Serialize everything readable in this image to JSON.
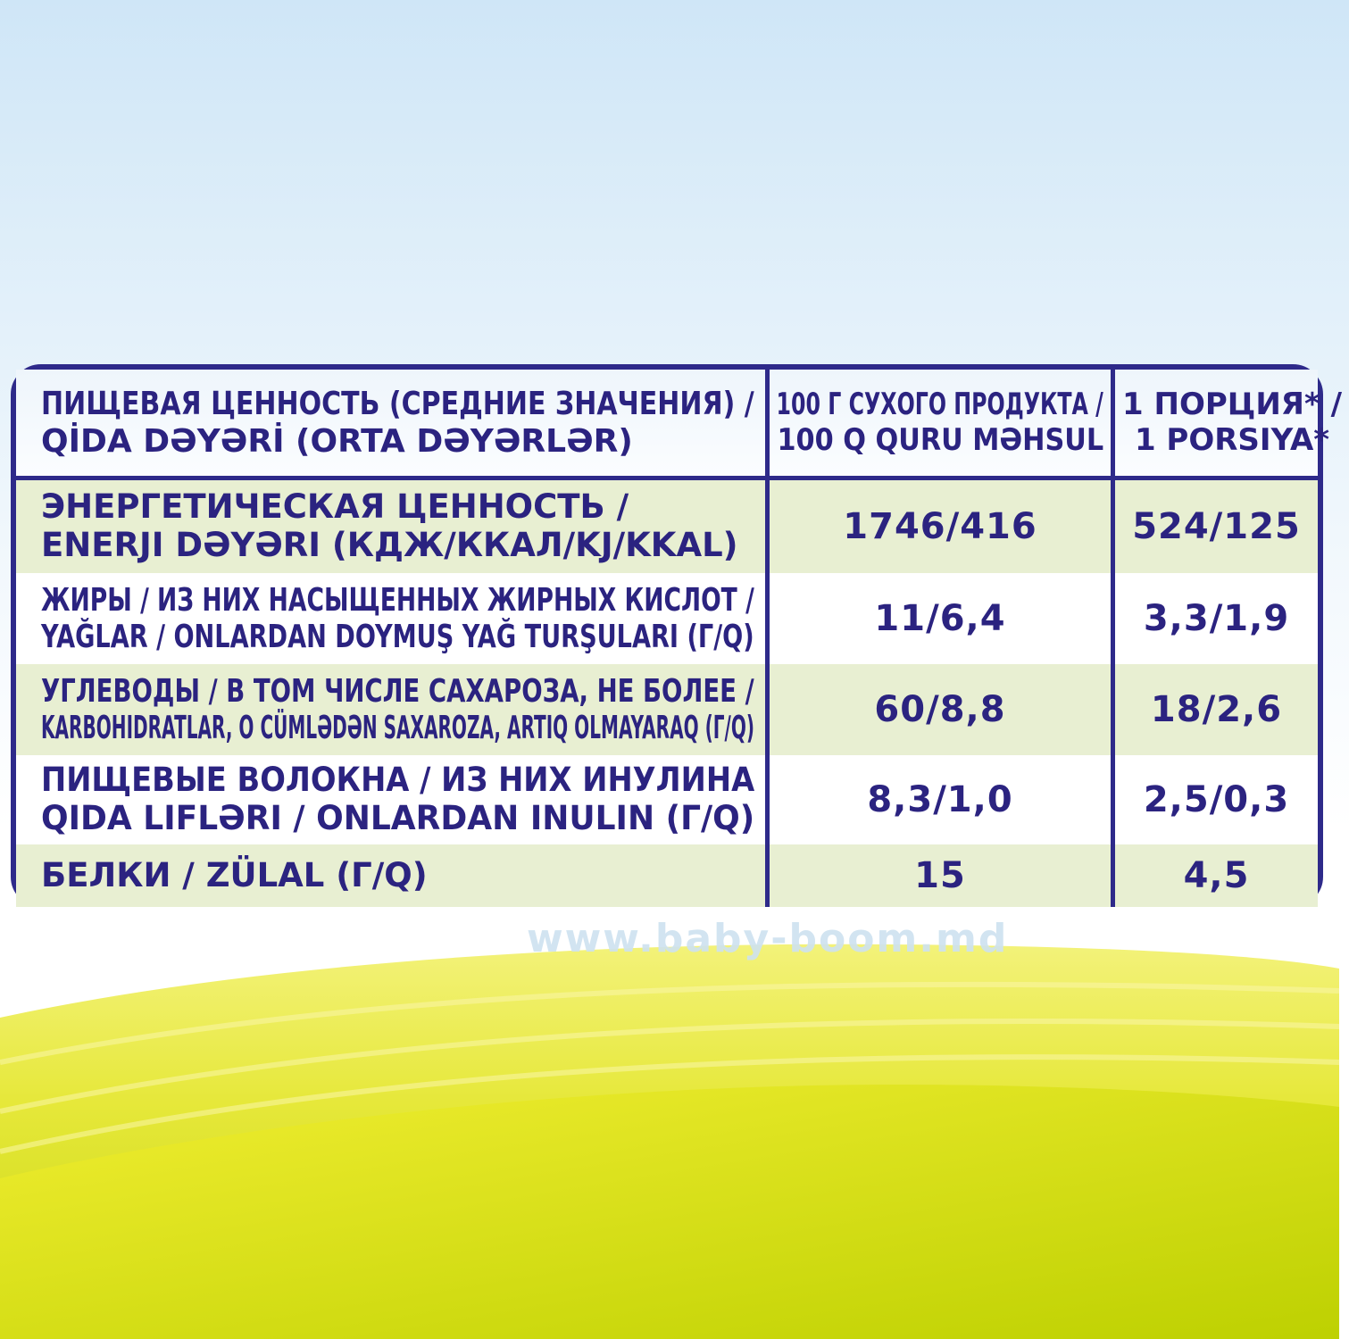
{
  "header": {
    "label_lines": [
      "ПИЩЕВАЯ ЦЕННОСТЬ (СРЕДНИЕ ЗНАЧЕНИЯ) /",
      "QİDA DƏYƏRİ (ORTA DƏYƏRLƏR)"
    ],
    "col100_lines": [
      "100 Г СУХОГО ПРОДУКТА /",
      "100 Q QURU MƏHSUL"
    ],
    "portion_lines": [
      "1 ПОРЦИЯ* /",
      "1  PORSIYA*"
    ]
  },
  "rows": [
    {
      "lines": [
        "ЭНЕРГЕТИЧЕСКАЯ ЦЕННОСТЬ /",
        "ENERJI DƏYƏRI (КДЖ/ККАЛ/KJ/KKAL)"
      ],
      "per100": "1746/416",
      "portion": "524/125"
    },
    {
      "lines": [
        "ЖИРЫ / ИЗ НИХ НАСЫЩЕННЫХ ЖИРНЫХ КИСЛОТ /",
        "YAĞLAR / ONLARDAN DOYMUŞ YAĞ TURŞULARI (Г/Q)"
      ],
      "per100": "11/6,4",
      "portion": "3,3/1,9"
    },
    {
      "lines": [
        "УГЛЕВОДЫ / В ТОМ ЧИСЛЕ САХАРОЗА, НЕ БОЛЕЕ /",
        "KARBOHIDRATLAR, O CÜMLƏDƏN SAXAROZA, ARTIQ OLMAYARAQ (Г/Q)"
      ],
      "per100": "60/8,8",
      "portion": "18/2,6"
    },
    {
      "lines": [
        "ПИЩЕВЫЕ ВОЛОКНА / ИЗ НИХ ИНУЛИНА",
        "QIDA LIFLƏRI / ONLARDAN INULIN (Г/Q)"
      ],
      "per100": "8,3/1,0",
      "portion": "2,5/0,3"
    },
    {
      "lines": [
        "БЕЛКИ / ZÜLAL (Г/Q)"
      ],
      "per100": "15",
      "portion": "4,5"
    }
  ],
  "watermark": "www.baby-boom.md",
  "colors": {
    "border": "#2e2a8a",
    "text": "#2b2380",
    "row_tint": "#e8efd2",
    "ground": "#d4dc1a"
  }
}
